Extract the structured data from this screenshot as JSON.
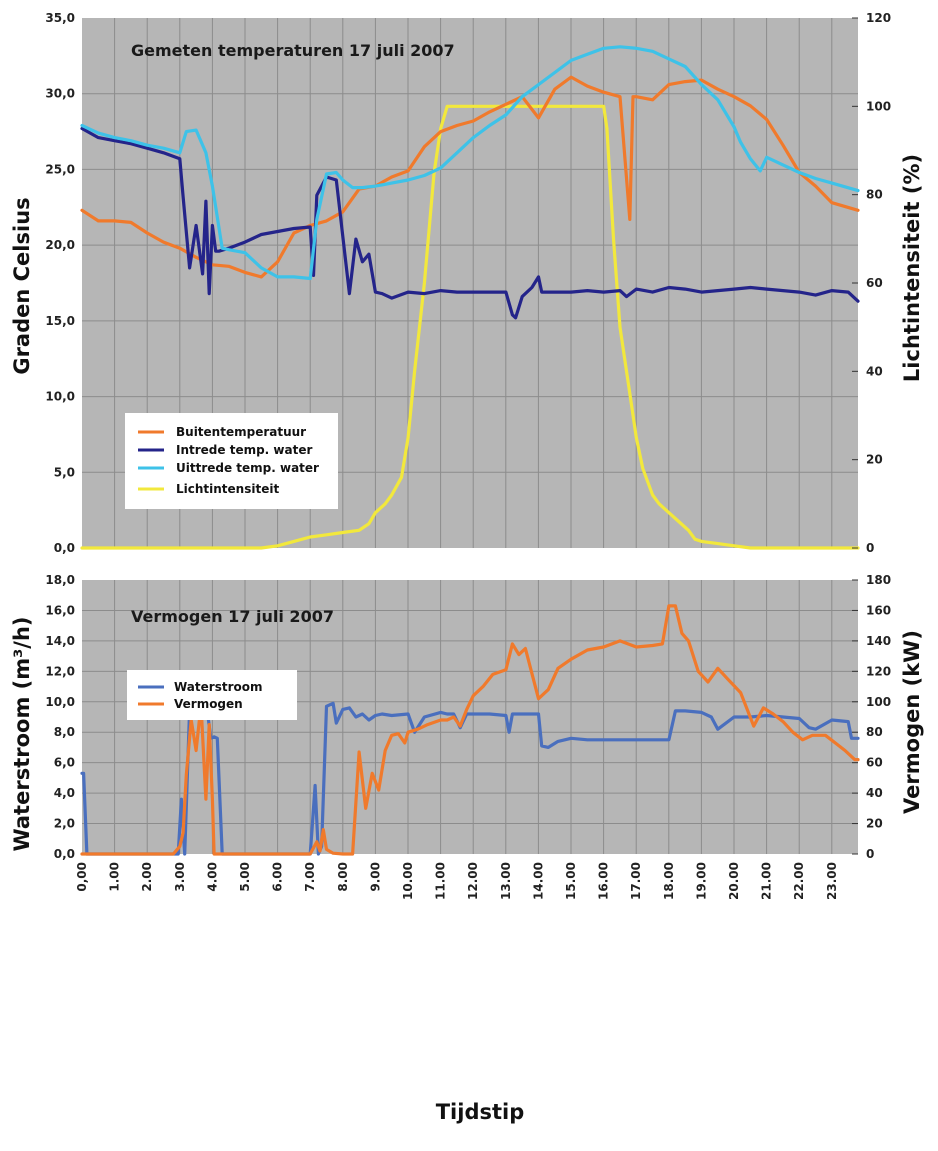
{
  "xlabel": "Tijdstip",
  "x_ticks": [
    "0,00",
    "1.00",
    "2.00",
    "3.00",
    "4.00",
    "5.00",
    "6.00",
    "7.00",
    "8.00",
    "9.00",
    "10.00",
    "11.00",
    "12.00",
    "13.00",
    "14.00",
    "15.00",
    "16.00",
    "17.00",
    "18.00",
    "19.00",
    "20.00",
    "21.00",
    "22.00",
    "23.00"
  ],
  "chart_data": [
    {
      "type": "line",
      "title": "Gemeten temperaturen 17 juli 2007",
      "xlabel": "Tijdstip",
      "ylabel": "Graden Celsius",
      "y2label": "Lichtintensiteit (%)",
      "xlim": [
        0,
        23.8
      ],
      "ylim": [
        0,
        35
      ],
      "y2lim": [
        0,
        120
      ],
      "y_ticks": [
        "0,0",
        "5,0",
        "10,0",
        "15,0",
        "20,0",
        "25,0",
        "30,0",
        "35,0"
      ],
      "y2_ticks": [
        "0",
        "20",
        "40",
        "60",
        "80",
        "100",
        "120"
      ],
      "grid": true,
      "legend_position": "lower-left",
      "series": [
        {
          "name": "Buitentemperatuur",
          "color": "#f07a2c",
          "axis": "left",
          "x": [
            0,
            0.5,
            1,
            1.5,
            2,
            2.5,
            3,
            3.5,
            4,
            4.5,
            5,
            5.5,
            6,
            6.5,
            7,
            7.5,
            8,
            8.5,
            9,
            9.5,
            10,
            10.5,
            11,
            11.5,
            12,
            12.5,
            13,
            13.5,
            14,
            14.5,
            15,
            15.5,
            16,
            16.5,
            16.8,
            16.9,
            17,
            17.5,
            18,
            18.5,
            19,
            19.5,
            20,
            20.5,
            21,
            21.5,
            22,
            22.5,
            23,
            23.8
          ],
          "y": [
            22.3,
            21.6,
            21.6,
            21.5,
            20.8,
            20.2,
            19.8,
            19.2,
            18.7,
            18.6,
            18.2,
            17.9,
            18.9,
            20.8,
            21.3,
            21.6,
            22.2,
            23.7,
            23.9,
            24.5,
            24.9,
            26.5,
            27.5,
            27.9,
            28.2,
            28.8,
            29.3,
            29.8,
            28.4,
            30.3,
            31.1,
            30.5,
            30.1,
            29.8,
            21.7,
            29.8,
            29.8,
            29.6,
            30.6,
            30.8,
            30.9,
            30.3,
            29.8,
            29.2,
            28.3,
            26.6,
            24.8,
            23.9,
            22.8,
            22.3
          ]
        },
        {
          "name": "Intrede temp. water",
          "color": "#24248a",
          "axis": "left",
          "x": [
            0,
            0.5,
            1,
            1.5,
            2,
            2.5,
            3,
            3.1,
            3.3,
            3.5,
            3.7,
            3.8,
            3.9,
            4,
            4.1,
            4.2,
            4.5,
            5,
            5.5,
            6,
            6.5,
            7,
            7.1,
            7.2,
            7.5,
            7.8,
            8.2,
            8.4,
            8.6,
            8.8,
            9,
            9.2,
            9.5,
            10,
            10.5,
            11,
            11.5,
            12,
            12.5,
            13,
            13.2,
            13.3,
            13.5,
            13.8,
            14,
            14.1,
            14.3,
            15,
            15.5,
            16,
            16.5,
            16.7,
            17,
            17.5,
            18,
            18.5,
            19,
            19.5,
            20,
            20.5,
            21,
            21.5,
            22,
            22.5,
            23,
            23.5,
            23.8
          ],
          "y": [
            27.7,
            27.1,
            26.9,
            26.7,
            26.4,
            26.1,
            25.7,
            23.2,
            18.5,
            21.3,
            18.1,
            22.9,
            16.8,
            21.3,
            19.6,
            19.6,
            19.8,
            20.2,
            20.7,
            20.9,
            21.1,
            21.2,
            18.0,
            23.3,
            24.5,
            24.3,
            16.8,
            20.4,
            18.9,
            19.4,
            16.9,
            16.8,
            16.5,
            16.9,
            16.8,
            17.0,
            16.9,
            16.9,
            16.9,
            16.9,
            15.4,
            15.2,
            16.6,
            17.2,
            17.9,
            16.9,
            16.9,
            16.9,
            17.0,
            16.9,
            17.0,
            16.6,
            17.1,
            16.9,
            17.2,
            17.1,
            16.9,
            17.0,
            17.1,
            17.2,
            17.1,
            17.0,
            16.9,
            16.7,
            17.0,
            16.9,
            16.3
          ]
        },
        {
          "name": "Uittrede temp. water",
          "color": "#3ec2e8",
          "axis": "left",
          "x": [
            0,
            0.5,
            1,
            1.5,
            2,
            2.5,
            3,
            3.2,
            3.5,
            3.8,
            4,
            4.3,
            4.5,
            5,
            5.5,
            6,
            6.5,
            7,
            7.2,
            7.5,
            7.8,
            8,
            8.3,
            8.6,
            9,
            9.5,
            10,
            10.5,
            11,
            11.5,
            12,
            12.5,
            13,
            13.5,
            14,
            14.5,
            15,
            15.5,
            16,
            16.5,
            17,
            17.5,
            18,
            18.5,
            19,
            19.5,
            20,
            20.2,
            20.5,
            20.8,
            21,
            21.5,
            22,
            22.5,
            23,
            23.8
          ],
          "y": [
            27.9,
            27.4,
            27.1,
            26.9,
            26.6,
            26.4,
            26.1,
            27.5,
            27.6,
            26.1,
            23.9,
            19.8,
            19.7,
            19.5,
            18.5,
            17.9,
            17.9,
            17.8,
            21.7,
            24.7,
            24.8,
            24.3,
            23.8,
            23.8,
            23.9,
            24.1,
            24.3,
            24.6,
            25.1,
            26.1,
            27.1,
            27.9,
            28.6,
            29.8,
            30.6,
            31.4,
            32.2,
            32.6,
            33.0,
            33.1,
            33.0,
            32.8,
            32.3,
            31.8,
            30.6,
            29.6,
            27.8,
            26.8,
            25.7,
            24.9,
            25.8,
            25.3,
            24.8,
            24.4,
            24.1,
            23.6
          ]
        },
        {
          "name": "Lichtintensiteit",
          "color": "#f2e83c",
          "axis": "right",
          "x": [
            0,
            1,
            2,
            3,
            4,
            5,
            5.5,
            6,
            6.5,
            7,
            7.5,
            8,
            8.5,
            8.8,
            9,
            9.3,
            9.5,
            9.8,
            10,
            10.2,
            10.5,
            10.8,
            11,
            11.2,
            11.3,
            11.5,
            12,
            13,
            14,
            15,
            16,
            16.1,
            16.3,
            16.5,
            16.8,
            17,
            17.2,
            17.5,
            17.7,
            18,
            18.3,
            18.6,
            18.8,
            19,
            19.5,
            20,
            20.5,
            21,
            21.5,
            22,
            23,
            23.8
          ],
          "y": [
            0,
            0,
            0,
            0,
            0,
            0,
            0,
            0.5,
            1.5,
            2.5,
            3,
            3.5,
            4,
            5.5,
            8,
            10,
            12,
            16,
            25,
            40,
            60,
            85,
            95,
            100,
            100,
            100,
            100,
            100,
            100,
            100,
            100,
            95,
            70,
            50,
            35,
            25,
            18,
            12,
            10,
            8,
            6,
            4,
            2,
            1.5,
            1,
            0.5,
            0,
            0,
            0,
            0,
            0,
            0
          ]
        }
      ]
    },
    {
      "type": "line",
      "title": "Vermogen 17 juli 2007",
      "xlabel": "Tijdstip",
      "ylabel": "Waterstroom (m³/h)",
      "y2label": "Vermogen (kW)",
      "xlim": [
        0,
        23.8
      ],
      "ylim": [
        0,
        18
      ],
      "y2lim": [
        0,
        180
      ],
      "y_ticks": [
        "0,0",
        "2,0",
        "4,0",
        "6,0",
        "8,0",
        "10,0",
        "12,0",
        "14,0",
        "16,0",
        "18,0"
      ],
      "y2_ticks": [
        "0",
        "20",
        "40",
        "60",
        "80",
        "100",
        "120",
        "140",
        "160",
        "180"
      ],
      "grid": true,
      "legend_position": "upper-left",
      "series": [
        {
          "name": "Waterstroom",
          "color": "#4a6fbe",
          "axis": "left",
          "x": [
            0,
            0.05,
            0.15,
            0.3,
            1,
            2,
            2.8,
            2.95,
            3.05,
            3.15,
            3.3,
            3.45,
            3.6,
            3.75,
            3.85,
            3.95,
            4.05,
            4.15,
            4.3,
            5,
            6,
            7,
            7.05,
            7.15,
            7.25,
            7.35,
            7.5,
            7.7,
            7.8,
            8,
            8.2,
            8.4,
            8.6,
            8.8,
            9,
            9.2,
            9.5,
            10,
            10.2,
            10.5,
            11,
            11.2,
            11.4,
            11.6,
            11.8,
            12,
            12.5,
            13,
            13.1,
            13.2,
            13.4,
            14,
            14.1,
            14.3,
            14.6,
            15,
            15.5,
            16,
            16.5,
            17,
            17.5,
            18,
            18.2,
            18.5,
            19,
            19.3,
            19.5,
            20,
            20.5,
            21,
            21.5,
            22,
            22.3,
            22.5,
            23,
            23.5,
            23.6,
            23.8
          ],
          "y": [
            5.3,
            5.3,
            0,
            0,
            0,
            0,
            0,
            0,
            3.6,
            0,
            9.5,
            10.9,
            9.5,
            9.2,
            9.3,
            7.6,
            7.7,
            7.6,
            0,
            0,
            0,
            0,
            1.5,
            4.5,
            0,
            0.5,
            9.7,
            9.9,
            8.6,
            9.5,
            9.6,
            9.0,
            9.2,
            8.8,
            9.1,
            9.2,
            9.1,
            9.2,
            8.0,
            9.0,
            9.3,
            9.2,
            9.2,
            8.3,
            9.2,
            9.2,
            9.2,
            9.1,
            8.0,
            9.2,
            9.2,
            9.2,
            7.1,
            7.0,
            7.4,
            7.6,
            7.5,
            7.5,
            7.5,
            7.5,
            7.5,
            7.5,
            9.4,
            9.4,
            9.3,
            9.0,
            8.2,
            9.0,
            9.0,
            9.1,
            9.0,
            8.9,
            8.3,
            8.2,
            8.8,
            8.7,
            7.6,
            7.6
          ]
        },
        {
          "name": "Vermogen",
          "color": "#f07a2c",
          "axis": "right",
          "x": [
            0,
            1,
            2,
            2.8,
            3,
            3.1,
            3.2,
            3.35,
            3.5,
            3.65,
            3.8,
            3.9,
            4,
            4.05,
            4.1,
            4.2,
            4.3,
            5,
            6,
            7,
            7.1,
            7.2,
            7.3,
            7.4,
            7.5,
            7.7,
            8,
            8.3,
            8.5,
            8.7,
            8.9,
            9.1,
            9.3,
            9.5,
            9.7,
            9.9,
            10,
            10.3,
            10.6,
            11,
            11.2,
            11.4,
            11.6,
            11.8,
            12,
            12.3,
            12.6,
            13,
            13.2,
            13.4,
            13.6,
            14,
            14.3,
            14.6,
            15,
            15.5,
            16,
            16.5,
            17,
            17.5,
            17.8,
            18,
            18.2,
            18.4,
            18.6,
            18.9,
            19.2,
            19.5,
            19.8,
            20.2,
            20.6,
            20.9,
            21.2,
            21.5,
            21.8,
            22.1,
            22.4,
            22.8,
            23.1,
            23.4,
            23.7,
            23.8
          ],
          "y": [
            0,
            0,
            0,
            0,
            5,
            14,
            52,
            88,
            68,
            98,
            36,
            85,
            36,
            0,
            0,
            0,
            0,
            0,
            0,
            0,
            4,
            8,
            2,
            16,
            3,
            0.5,
            0,
            0,
            67,
            30,
            53,
            42,
            68,
            78,
            79,
            73,
            80,
            82,
            85,
            88,
            88,
            90,
            84,
            95,
            104,
            110,
            118,
            121,
            138,
            131,
            135,
            102,
            108,
            122,
            128,
            134,
            136,
            140,
            136,
            137,
            138,
            163,
            163,
            145,
            140,
            120,
            113,
            122,
            115,
            106,
            84,
            96,
            92,
            87,
            80,
            75,
            78,
            78,
            73,
            68,
            62,
            62
          ]
        }
      ]
    }
  ]
}
